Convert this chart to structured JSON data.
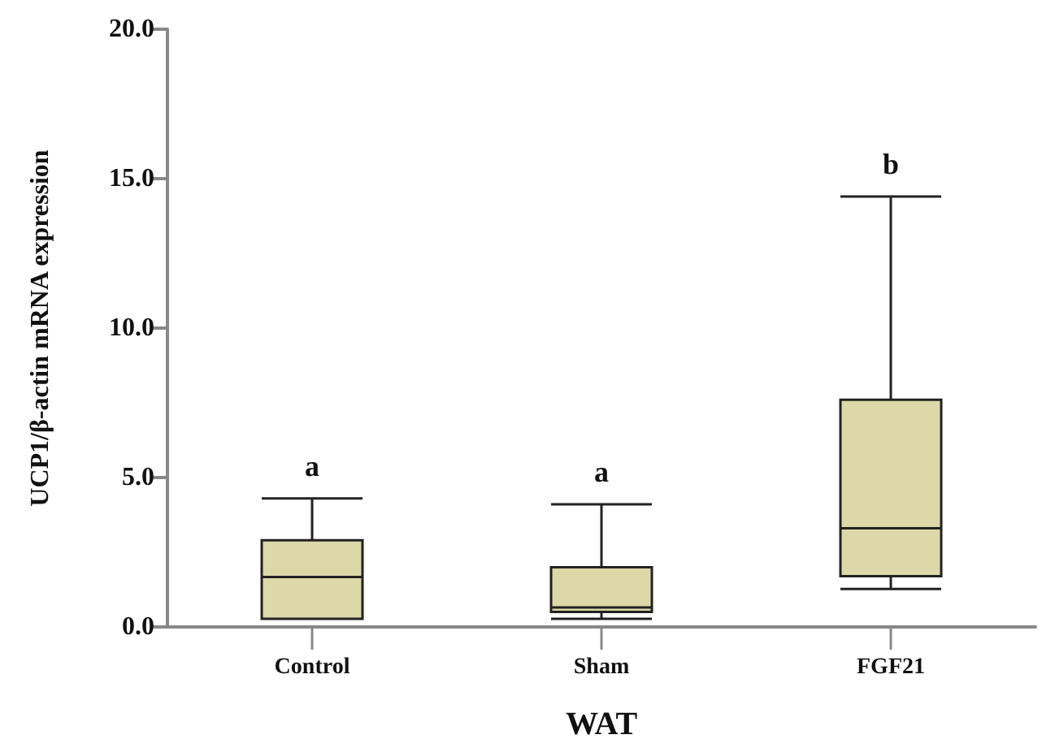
{
  "chart_data": {
    "type": "box",
    "xlabel": "WAT",
    "ylabel": "UCP1/β-actin mRNA expression",
    "categories": [
      "Control",
      "Sham",
      "FGF21"
    ],
    "color": "#ddd8a8",
    "boxes": [
      {
        "low": 0.27,
        "q1": 0.27,
        "median": 1.67,
        "q3": 2.9,
        "high": 4.3
      },
      {
        "low": 0.27,
        "q1": 0.5,
        "median": 0.65,
        "q3": 2.0,
        "high": 4.1
      },
      {
        "low": 1.27,
        "q1": 1.7,
        "median": 3.3,
        "q3": 7.6,
        "high": 14.4
      }
    ],
    "ylim": [
      0,
      20
    ],
    "yticks": [
      {
        "value": 0,
        "label": "0.0"
      },
      {
        "value": 5,
        "label": "5.0"
      },
      {
        "value": 10,
        "label": "10.0"
      },
      {
        "value": 15,
        "label": "15.0"
      },
      {
        "value": 20,
        "label": "20.0"
      }
    ],
    "grid": false,
    "annotations": [
      "a",
      "a",
      "b"
    ]
  }
}
